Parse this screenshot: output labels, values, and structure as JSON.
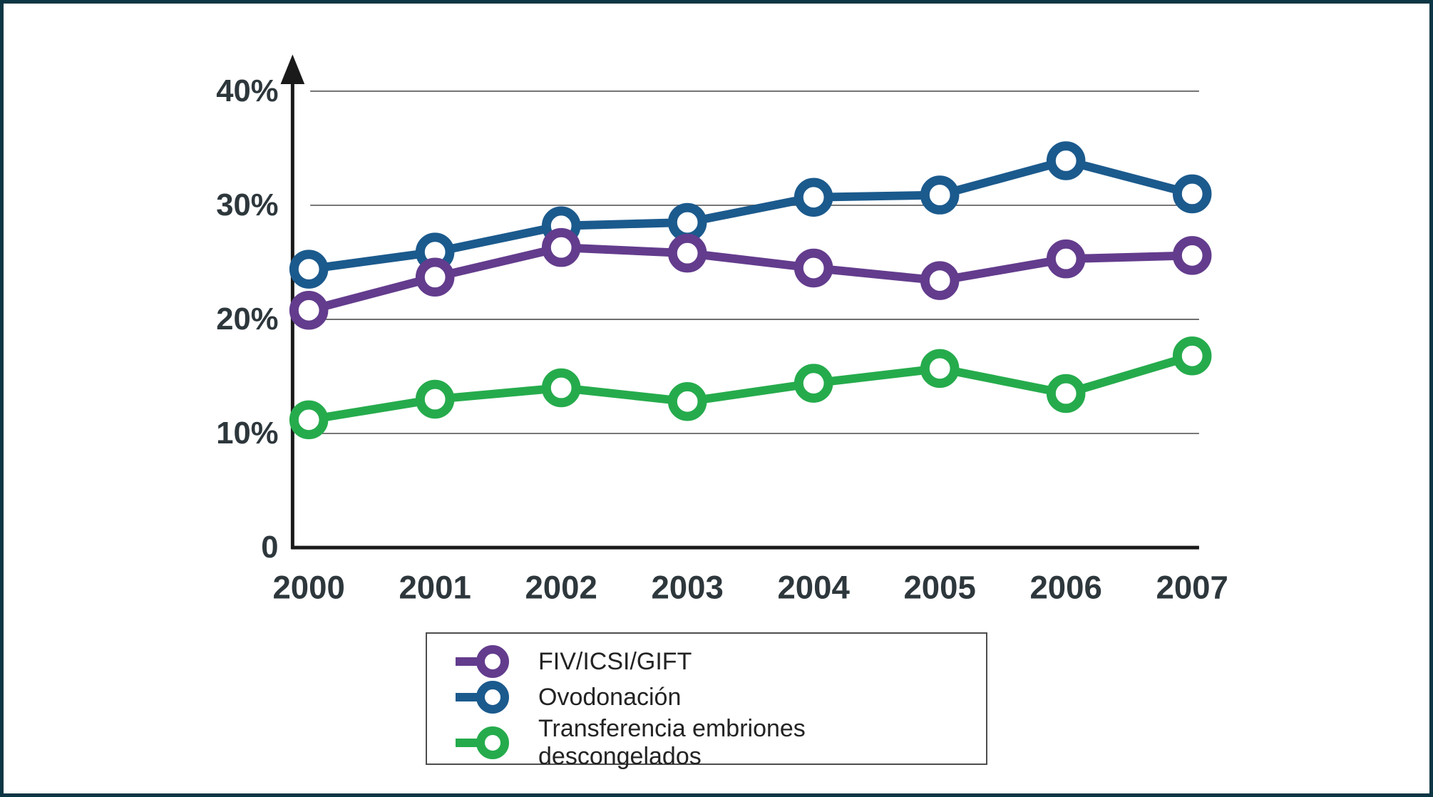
{
  "figure": {
    "border_color": "#0d3644",
    "background_color": "#ffffff"
  },
  "axes": {
    "y_tick_labels": [
      "40%",
      "30%",
      "20%",
      "10%",
      "0"
    ],
    "x_tick_labels": [
      "2000",
      "2001",
      "2002",
      "2003",
      "2004",
      "2005",
      "2006",
      "2007"
    ],
    "text_color": "#2d373c",
    "axis_color": "#1a1a1a",
    "gridline_color": "#6f6f6f"
  },
  "legend": {
    "border_color": "#4d4d4d",
    "items": [
      {
        "label": "FIV/ICSI/GIFT",
        "color": "#633c8d"
      },
      {
        "label": "Ovodonación",
        "color": "#1b5a8d"
      },
      {
        "label": "Transferencia embriones descongelados",
        "color": "#25ab4c"
      }
    ]
  },
  "chart_data": {
    "type": "line",
    "categories": [
      "2000",
      "2001",
      "2002",
      "2003",
      "2004",
      "2005",
      "2006",
      "2007"
    ],
    "series": [
      {
        "name": "FIV/ICSI/GIFT",
        "color": "#633c8d",
        "values": [
          20.8,
          23.7,
          26.3,
          25.8,
          24.5,
          23.4,
          25.3,
          25.6
        ]
      },
      {
        "name": "Ovodonación",
        "color": "#1b5a8d",
        "values": [
          24.4,
          25.9,
          28.2,
          28.5,
          30.7,
          30.9,
          33.9,
          31.0
        ]
      },
      {
        "name": "Transferencia embriones descongelados",
        "color": "#25ab4c",
        "values": [
          11.2,
          13.0,
          14.0,
          12.8,
          14.4,
          15.7,
          13.5,
          16.8
        ]
      }
    ],
    "title": "",
    "xlabel": "",
    "ylabel": "",
    "ylim": [
      0,
      42
    ],
    "yticks": [
      0,
      10,
      20,
      30,
      40
    ],
    "grid": true,
    "marker": "open-circle",
    "legend_position": "bottom-center"
  }
}
